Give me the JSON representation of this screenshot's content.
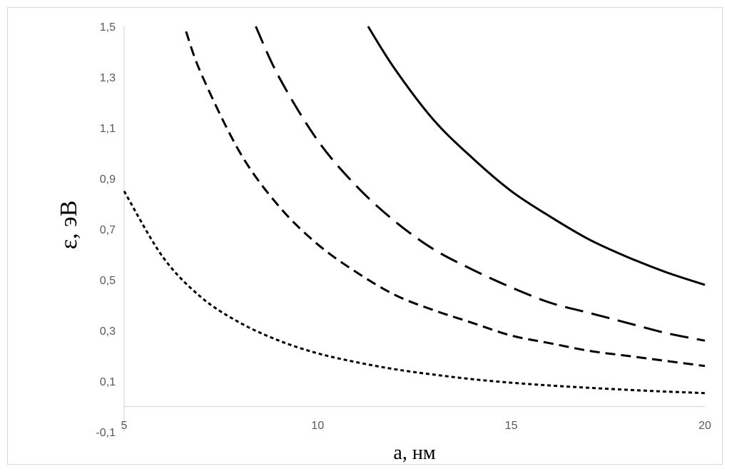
{
  "chart_data": {
    "type": "line",
    "title": "",
    "xlabel": "a, нм",
    "ylabel": "ε, эВ",
    "xlim": [
      5,
      20
    ],
    "ylim": [
      -0.1,
      1.5
    ],
    "x_ticks": [
      5,
      10,
      15,
      20
    ],
    "x_tick_labels": [
      "5",
      "10",
      "15",
      "20"
    ],
    "y_ticks": [
      -0.1,
      0.1,
      0.3,
      0.5,
      0.7,
      0.9,
      1.1,
      1.3,
      1.5
    ],
    "y_tick_labels": [
      "-0,1",
      "0,1",
      "0,3",
      "0,5",
      "0,7",
      "0,9",
      "1,1",
      "1,3",
      "1,5"
    ],
    "grid": false,
    "legend": "none",
    "colors": {
      "series": "#000000",
      "axis": "#d9d9d9",
      "tick_text": "#595959"
    },
    "series": [
      {
        "style": "solid",
        "x": [
          11.3,
          12,
          13,
          14,
          15,
          16,
          17,
          18,
          19,
          20
        ],
        "y": [
          1.5,
          1.33,
          1.13,
          0.98,
          0.85,
          0.75,
          0.66,
          0.59,
          0.53,
          0.48
        ]
      },
      {
        "style": "long-dash",
        "x": [
          8.4,
          9,
          10,
          11,
          12,
          13,
          14,
          15,
          16,
          17,
          18,
          19,
          20
        ],
        "y": [
          1.5,
          1.3,
          1.05,
          0.87,
          0.73,
          0.62,
          0.54,
          0.47,
          0.41,
          0.37,
          0.33,
          0.29,
          0.26
        ]
      },
      {
        "style": "medium-dash",
        "x": [
          6.6,
          7,
          8,
          9,
          10,
          11,
          12,
          13,
          14,
          15,
          16,
          17,
          18,
          19,
          20
        ],
        "y": [
          1.48,
          1.31,
          1.0,
          0.79,
          0.64,
          0.53,
          0.44,
          0.38,
          0.33,
          0.28,
          0.25,
          0.22,
          0.2,
          0.18,
          0.16
        ]
      },
      {
        "style": "short-dash",
        "x": [
          5,
          6,
          7,
          8,
          9,
          10,
          11,
          12,
          13,
          14,
          15,
          16,
          17,
          18,
          19,
          20
        ],
        "y": [
          0.85,
          0.59,
          0.43,
          0.33,
          0.26,
          0.21,
          0.175,
          0.147,
          0.126,
          0.108,
          0.094,
          0.083,
          0.074,
          0.066,
          0.059,
          0.053
        ]
      }
    ]
  }
}
